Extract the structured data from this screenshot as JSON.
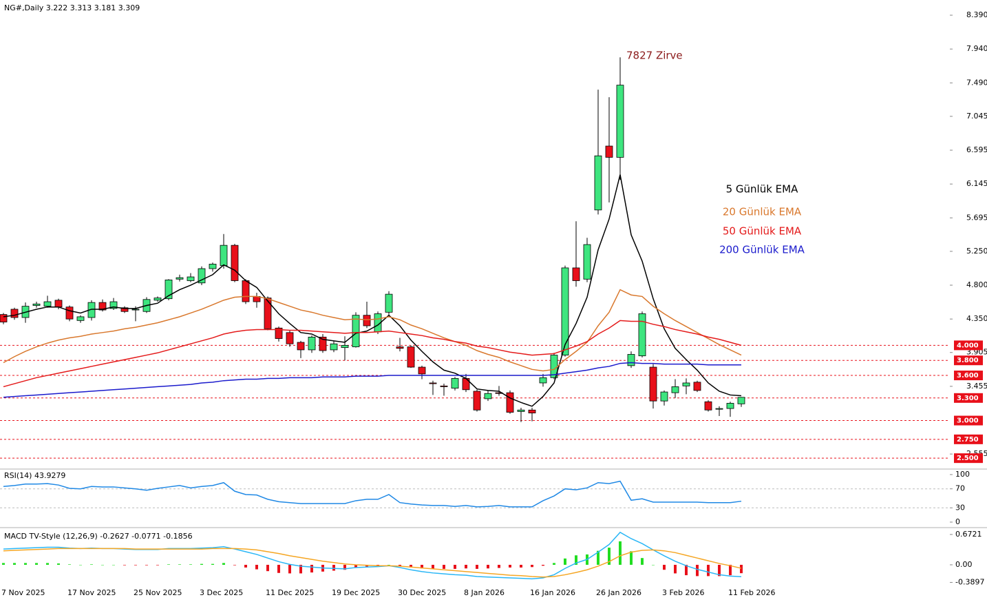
{
  "chart_data": [
    {
      "type": "candlestick",
      "title": "NG#,Daily  3.222 3.313 3.181 3.309",
      "categories": [
        "7 Nov 2025",
        null,
        null,
        null,
        null,
        null,
        "17 Nov 2025",
        null,
        null,
        null,
        null,
        null,
        "25 Nov 2025",
        null,
        null,
        null,
        null,
        null,
        "3 Dec 2025",
        null,
        null,
        null,
        null,
        null,
        "11 Dec 2025",
        null,
        null,
        null,
        null,
        null,
        "19 Dec 2025",
        null,
        null,
        null,
        null,
        null,
        "30 Dec 2025",
        null,
        null,
        null,
        null,
        null,
        "8 Jan 2026",
        null,
        null,
        null,
        null,
        null,
        "16 Jan 2026",
        null,
        null,
        null,
        null,
        null,
        "26 Jan 2026",
        null,
        null,
        null,
        null,
        null,
        "3 Feb 2026",
        null,
        null,
        null,
        null,
        null,
        "11 Feb 2026",
        null
      ],
      "open": [
        4.41,
        4.48,
        4.37,
        4.53,
        4.52,
        4.6,
        4.51,
        4.33,
        4.37,
        4.57,
        4.49,
        4.5,
        4.47,
        4.45,
        4.6,
        4.62,
        4.88,
        4.86,
        4.83,
        5.02,
        5.06,
        5.33,
        4.86,
        4.65,
        4.63,
        4.23,
        4.17,
        4.04,
        3.94,
        4.11,
        3.94,
        3.97,
        3.98,
        4.4,
        4.18,
        4.44,
        3.98,
        3.98,
        3.71,
        3.5,
        3.46,
        3.43,
        3.56,
        3.39,
        3.29,
        3.37,
        3.37,
        3.12,
        3.14,
        3.5,
        3.57,
        3.87,
        5.03,
        4.88,
        5.8,
        6.65,
        6.5,
        3.73,
        3.86,
        3.71,
        3.26,
        3.37,
        3.46,
        3.51,
        3.25,
        3.15,
        3.16,
        3.222
      ],
      "high": [
        4.43,
        4.5,
        4.57,
        4.58,
        4.66,
        4.62,
        4.53,
        4.4,
        4.6,
        4.61,
        4.63,
        4.52,
        4.52,
        4.64,
        4.65,
        4.88,
        4.94,
        4.96,
        5.05,
        5.1,
        5.48,
        5.35,
        4.88,
        4.7,
        4.65,
        4.25,
        4.2,
        4.06,
        4.13,
        4.15,
        4.06,
        4.12,
        4.44,
        4.58,
        4.45,
        4.72,
        4.1,
        4.0,
        3.73,
        3.53,
        3.49,
        3.58,
        3.62,
        3.41,
        3.4,
        3.46,
        3.4,
        3.17,
        3.17,
        3.62,
        3.9,
        5.06,
        5.65,
        5.43,
        7.4,
        7.3,
        7.83,
        3.92,
        4.45,
        3.75,
        3.4,
        3.55,
        3.56,
        3.53,
        3.27,
        3.19,
        3.25,
        3.313
      ],
      "low": [
        4.28,
        4.34,
        4.3,
        4.5,
        4.5,
        4.48,
        4.32,
        4.3,
        4.33,
        4.45,
        4.47,
        4.43,
        4.32,
        4.43,
        4.58,
        4.6,
        4.85,
        4.84,
        4.8,
        4.98,
        5.02,
        4.84,
        4.55,
        4.5,
        4.2,
        4.05,
        3.98,
        3.83,
        3.9,
        3.9,
        3.91,
        3.8,
        3.97,
        4.23,
        4.15,
        4.4,
        3.92,
        3.7,
        3.55,
        3.34,
        3.33,
        3.4,
        3.38,
        3.12,
        3.26,
        3.33,
        3.09,
        2.98,
        2.99,
        3.45,
        3.55,
        3.85,
        4.78,
        4.84,
        5.74,
        5.9,
        6.2,
        3.7,
        3.84,
        3.16,
        3.2,
        3.3,
        3.35,
        3.38,
        3.12,
        3.06,
        3.05,
        3.181
      ],
      "close": [
        4.31,
        4.37,
        4.52,
        4.55,
        4.58,
        4.51,
        4.35,
        4.38,
        4.57,
        4.47,
        4.58,
        4.45,
        4.48,
        4.61,
        4.63,
        4.87,
        4.9,
        4.91,
        5.02,
        5.08,
        5.33,
        4.86,
        4.58,
        4.58,
        4.22,
        4.09,
        4.02,
        3.94,
        4.11,
        3.93,
        4.02,
        4.0,
        4.4,
        4.26,
        4.42,
        4.68,
        3.96,
        3.71,
        3.62,
        3.49,
        3.45,
        3.56,
        3.41,
        3.14,
        3.36,
        3.36,
        3.11,
        3.14,
        3.1,
        3.57,
        3.87,
        5.03,
        4.86,
        5.34,
        6.52,
        6.5,
        7.46,
        3.88,
        4.42,
        3.26,
        3.38,
        3.45,
        3.5,
        3.4,
        3.14,
        3.16,
        3.23,
        3.309
      ],
      "up_color": "#3ee57f",
      "down_color": "#e8101a",
      "series": [
        {
          "name": "5 Günlük EMA",
          "color": "#000000",
          "values": [
            4.38,
            4.4,
            4.44,
            4.48,
            4.51,
            4.51,
            4.46,
            4.43,
            4.48,
            4.48,
            4.51,
            4.49,
            4.49,
            4.53,
            4.56,
            4.66,
            4.74,
            4.8,
            4.87,
            4.94,
            5.07,
            5.0,
            4.86,
            4.77,
            4.59,
            4.42,
            4.29,
            4.17,
            4.15,
            4.08,
            4.06,
            4.04,
            4.16,
            4.19,
            4.27,
            4.4,
            4.26,
            4.07,
            3.92,
            3.78,
            3.67,
            3.63,
            3.56,
            3.42,
            3.4,
            3.39,
            3.3,
            3.24,
            3.19,
            3.32,
            3.5,
            4.01,
            4.29,
            4.64,
            5.27,
            5.68,
            6.27,
            5.47,
            5.12,
            4.62,
            4.22,
            3.96,
            3.81,
            3.67,
            3.5,
            3.39,
            3.34,
            3.33
          ]
        },
        {
          "name": "20 Günlük EMA",
          "color": "#d9782d",
          "values": [
            3.77,
            3.85,
            3.92,
            3.98,
            4.03,
            4.07,
            4.1,
            4.12,
            4.15,
            4.17,
            4.19,
            4.22,
            4.24,
            4.27,
            4.3,
            4.34,
            4.38,
            4.43,
            4.48,
            4.54,
            4.6,
            4.64,
            4.65,
            4.65,
            4.62,
            4.57,
            4.52,
            4.47,
            4.44,
            4.4,
            4.37,
            4.34,
            4.35,
            4.34,
            4.35,
            4.38,
            4.34,
            4.27,
            4.22,
            4.16,
            4.1,
            4.05,
            4.0,
            3.93,
            3.88,
            3.84,
            3.78,
            3.73,
            3.68,
            3.66,
            3.68,
            3.81,
            3.92,
            4.04,
            4.26,
            4.44,
            4.74,
            4.67,
            4.65,
            4.52,
            4.42,
            4.33,
            4.25,
            4.17,
            4.09,
            4.01,
            3.94,
            3.87
          ]
        },
        {
          "name": "50 Günlük EMA",
          "color": "#e41a1a",
          "values": [
            3.45,
            3.49,
            3.53,
            3.57,
            3.6,
            3.63,
            3.66,
            3.69,
            3.72,
            3.75,
            3.78,
            3.81,
            3.84,
            3.87,
            3.9,
            3.94,
            3.98,
            4.02,
            4.06,
            4.1,
            4.15,
            4.18,
            4.2,
            4.21,
            4.21,
            4.21,
            4.2,
            4.2,
            4.19,
            4.18,
            4.17,
            4.16,
            4.17,
            4.17,
            4.18,
            4.19,
            4.17,
            4.15,
            4.13,
            4.1,
            4.08,
            4.05,
            4.03,
            3.99,
            3.97,
            3.94,
            3.91,
            3.89,
            3.87,
            3.88,
            3.89,
            3.94,
            3.99,
            4.05,
            4.15,
            4.23,
            4.33,
            4.32,
            4.32,
            4.28,
            4.25,
            4.21,
            4.18,
            4.15,
            4.11,
            4.08,
            4.04,
            4.0
          ]
        },
        {
          "name": "200 Günlük EMA",
          "color": "#1a1acc",
          "values": [
            3.31,
            3.32,
            3.33,
            3.34,
            3.35,
            3.36,
            3.37,
            3.38,
            3.39,
            3.4,
            3.41,
            3.42,
            3.43,
            3.44,
            3.45,
            3.46,
            3.47,
            3.48,
            3.5,
            3.51,
            3.53,
            3.54,
            3.55,
            3.55,
            3.56,
            3.56,
            3.57,
            3.57,
            3.57,
            3.58,
            3.58,
            3.58,
            3.59,
            3.59,
            3.59,
            3.6,
            3.6,
            3.6,
            3.6,
            3.6,
            3.6,
            3.6,
            3.6,
            3.6,
            3.6,
            3.6,
            3.6,
            3.6,
            3.6,
            3.6,
            3.61,
            3.63,
            3.65,
            3.67,
            3.7,
            3.72,
            3.76,
            3.77,
            3.76,
            3.76,
            3.75,
            3.75,
            3.75,
            3.75,
            3.74,
            3.74,
            3.74,
            3.74
          ]
        }
      ],
      "annotation": "7827 Zirve",
      "annotation_color": "#8b1a1a",
      "levels": [
        {
          "value": 4,
          "label": "4.000"
        },
        {
          "value": 3.8,
          "label": "3.800"
        },
        {
          "value": 3.6,
          "label": "3.600"
        },
        {
          "value": 3.3,
          "label": "3.300"
        },
        {
          "value": 3,
          "label": "3.000"
        },
        {
          "value": 2.75,
          "label": "2.750"
        },
        {
          "value": 2.5,
          "label": "2.500"
        }
      ],
      "level_color": "#e8101a",
      "ylim": [
        2.364,
        8.592
      ],
      "yticks": [
        {
          "value": 8.39,
          "label": "8.390"
        },
        {
          "value": 7.94,
          "label": "7.940"
        },
        {
          "value": 7.49,
          "label": "7.490"
        },
        7.045,
        6.595,
        6.145,
        5.695,
        {
          "value": 5.25,
          "label": "5.250"
        },
        {
          "value": 4.8,
          "label": "4.800"
        },
        {
          "value": 4.35,
          "label": "4.350"
        },
        3.905,
        3.455,
        2.555
      ]
    },
    {
      "type": "line",
      "title": "RSI(14) 43.9279",
      "series": [
        {
          "color": "#1e88e5",
          "values": [
            75,
            77,
            80,
            80,
            81,
            78,
            71,
            70,
            75,
            74,
            74,
            72,
            70,
            67,
            71,
            74,
            77,
            72,
            75,
            77,
            83,
            65,
            58,
            57,
            48,
            43,
            41,
            39,
            39,
            39,
            39,
            39,
            45,
            48,
            48,
            58,
            41,
            38,
            36,
            35,
            35,
            33,
            35,
            32,
            33,
            35,
            32,
            32,
            32,
            45,
            55,
            70,
            68,
            72,
            83,
            81,
            86,
            46,
            49,
            42,
            42,
            42,
            42,
            42,
            41,
            41,
            41,
            43.9279
          ]
        }
      ],
      "ylim": [
        0,
        100
      ],
      "yticks": [
        100,
        70,
        30,
        0
      ],
      "grid": true
    },
    {
      "type": "macd",
      "title": "MACD TV-Style (12,26,9) -0.2627 -0.0771 -0.1856",
      "series": [
        {
          "color": "#29b6f6",
          "values": [
            0.35,
            0.36,
            0.37,
            0.38,
            0.39,
            0.39,
            0.37,
            0.36,
            0.37,
            0.36,
            0.36,
            0.35,
            0.34,
            0.34,
            0.34,
            0.36,
            0.36,
            0.36,
            0.37,
            0.38,
            0.4,
            0.35,
            0.29,
            0.23,
            0.15,
            0.07,
            0.01,
            -0.03,
            -0.05,
            -0.07,
            -0.08,
            -0.09,
            -0.06,
            -0.05,
            -0.04,
            -0.02,
            -0.06,
            -0.11,
            -0.15,
            -0.18,
            -0.2,
            -0.22,
            -0.23,
            -0.26,
            -0.27,
            -0.28,
            -0.29,
            -0.3,
            -0.31,
            -0.29,
            -0.22,
            -0.08,
            0.04,
            0.12,
            0.28,
            0.45,
            0.72,
            0.58,
            0.47,
            0.33,
            0.2,
            0.08,
            -0.02,
            -0.1,
            -0.16,
            -0.22,
            -0.25,
            -0.2627
          ]
        },
        {
          "color": "#f5a623",
          "values": [
            0.31,
            0.32,
            0.33,
            0.34,
            0.35,
            0.36,
            0.36,
            0.36,
            0.36,
            0.36,
            0.36,
            0.36,
            0.35,
            0.35,
            0.35,
            0.35,
            0.35,
            0.35,
            0.35,
            0.36,
            0.36,
            0.36,
            0.35,
            0.33,
            0.29,
            0.25,
            0.2,
            0.16,
            0.12,
            0.08,
            0.05,
            0.02,
            0.0,
            -0.01,
            -0.02,
            -0.02,
            -0.03,
            -0.05,
            -0.07,
            -0.09,
            -0.11,
            -0.13,
            -0.15,
            -0.17,
            -0.19,
            -0.21,
            -0.23,
            -0.24,
            -0.26,
            -0.27,
            -0.26,
            -0.22,
            -0.17,
            -0.11,
            -0.03,
            0.07,
            0.2,
            0.28,
            0.32,
            0.33,
            0.31,
            0.27,
            0.21,
            0.15,
            0.09,
            0.03,
            -0.02,
            -0.0771
          ]
        }
      ],
      "histogram": [
        0.04,
        0.04,
        0.04,
        0.04,
        0.04,
        0.03,
        0.01,
        0.0,
        0.01,
        0.0,
        0.0,
        -0.01,
        -0.01,
        -0.01,
        -0.01,
        0.01,
        0.01,
        0.01,
        0.02,
        0.02,
        0.04,
        -0.01,
        -0.06,
        -0.1,
        -0.14,
        -0.18,
        -0.19,
        -0.19,
        -0.17,
        -0.15,
        -0.13,
        -0.11,
        -0.06,
        -0.04,
        -0.02,
        0.0,
        -0.03,
        -0.06,
        -0.08,
        -0.09,
        -0.09,
        -0.09,
        -0.08,
        -0.09,
        -0.08,
        -0.07,
        -0.06,
        -0.06,
        -0.05,
        -0.02,
        0.04,
        0.14,
        0.21,
        0.23,
        0.31,
        0.38,
        0.52,
        0.3,
        0.15,
        0.0,
        -0.11,
        -0.19,
        -0.23,
        -0.25,
        -0.25,
        -0.25,
        -0.23,
        -0.1856
      ],
      "up_color": "#22dd22",
      "down_color": "#e8101a",
      "ylim": [
        -0.427,
        0.763
      ],
      "yticks": [
        0.6721,
        {
          "value": 0,
          "label": "0.00"
        },
        -0.3897
      ]
    }
  ]
}
